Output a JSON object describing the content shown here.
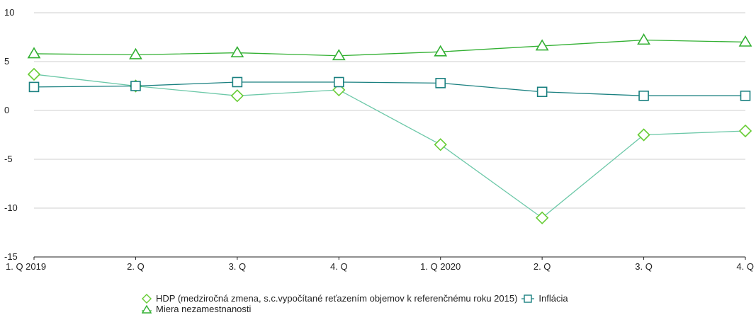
{
  "chart_data": {
    "type": "line",
    "title": "",
    "xlabel": "",
    "ylabel": "",
    "categories": [
      "1. Q 2019",
      "2. Q",
      "3. Q",
      "4. Q",
      "1. Q 2020",
      "2. Q",
      "3. Q",
      "4. Q"
    ],
    "ylim": [
      -15,
      10
    ],
    "yticks": [
      10,
      5,
      0,
      -5,
      -10,
      -15
    ],
    "ytick_labels": [
      "10",
      "5",
      "0",
      "-5",
      "-10",
      "-15"
    ],
    "grid": true,
    "legend_position": "bottom",
    "series": [
      {
        "name": "HDP (medziročná zmena, s.c.vypočítané reťazením objemov k referenčnému roku 2015)",
        "marker": "diamond",
        "color": "#66cc33",
        "line_color": "#6cc8a8",
        "values": [
          3.7,
          2.5,
          1.5,
          2.1,
          -3.5,
          -11.0,
          -2.5,
          -2.1
        ]
      },
      {
        "name": "Inflácia",
        "marker": "square",
        "color": "#1a8080",
        "line_color": "#1a8080",
        "values": [
          2.4,
          2.5,
          2.9,
          2.9,
          2.8,
          1.9,
          1.5,
          1.5
        ]
      },
      {
        "name": "Miera nezamestnanosti",
        "marker": "triangle",
        "color": "#33b033",
        "line_color": "#33b033",
        "values": [
          5.8,
          5.7,
          5.9,
          5.6,
          6.0,
          6.6,
          7.2,
          7.0
        ]
      }
    ]
  }
}
